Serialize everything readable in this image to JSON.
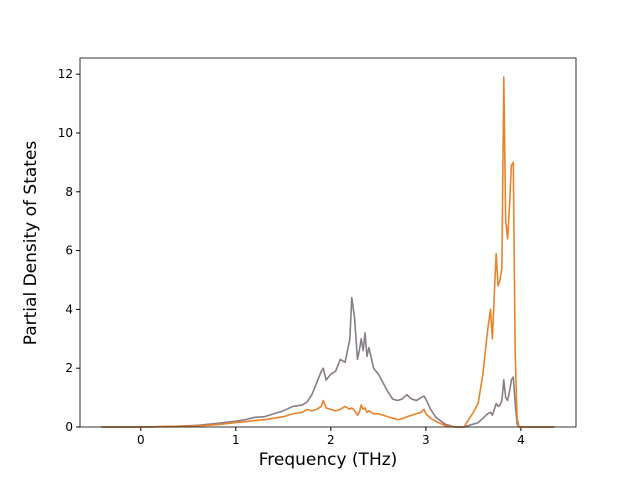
{
  "chart_data": {
    "type": "line",
    "xlabel": "Frequency (THz)",
    "ylabel": "Partial Density of States",
    "xlim": [
      -0.64,
      4.58
    ],
    "ylim": [
      0,
      12.55
    ],
    "xticks": [
      0,
      1,
      2,
      3,
      4
    ],
    "yticks": [
      0,
      2,
      4,
      6,
      8,
      10,
      12
    ],
    "grid": false,
    "x": [
      -0.42,
      0.0,
      0.2,
      0.4,
      0.6,
      0.8,
      1.0,
      1.1,
      1.2,
      1.3,
      1.4,
      1.5,
      1.6,
      1.7,
      1.75,
      1.8,
      1.85,
      1.9,
      1.92,
      1.95,
      2.0,
      2.05,
      2.1,
      2.15,
      2.2,
      2.22,
      2.25,
      2.28,
      2.3,
      2.32,
      2.34,
      2.36,
      2.38,
      2.4,
      2.45,
      2.5,
      2.55,
      2.6,
      2.65,
      2.7,
      2.75,
      2.8,
      2.85,
      2.9,
      2.95,
      2.98,
      3.0,
      3.05,
      3.1,
      3.2,
      3.3,
      3.4,
      3.45,
      3.5,
      3.55,
      3.6,
      3.65,
      3.68,
      3.7,
      3.72,
      3.74,
      3.76,
      3.78,
      3.8,
      3.82,
      3.84,
      3.86,
      3.88,
      3.9,
      3.92,
      3.94,
      3.96,
      3.98,
      4.35
    ],
    "series": [
      {
        "color": "#8a7c87",
        "values": [
          0,
          0,
          0.01,
          0.03,
          0.06,
          0.12,
          0.2,
          0.25,
          0.33,
          0.35,
          0.45,
          0.55,
          0.7,
          0.75,
          0.85,
          1.1,
          1.5,
          1.9,
          2.0,
          1.6,
          1.8,
          1.9,
          2.3,
          2.2,
          3.0,
          4.4,
          3.7,
          2.3,
          2.6,
          3.0,
          2.6,
          3.2,
          2.4,
          2.7,
          2.0,
          1.8,
          1.5,
          1.2,
          0.95,
          0.9,
          0.95,
          1.1,
          0.95,
          0.9,
          1.0,
          1.05,
          0.95,
          0.6,
          0.35,
          0.1,
          0,
          0,
          0.05,
          0.1,
          0.15,
          0.3,
          0.45,
          0.5,
          0.4,
          0.6,
          0.8,
          0.7,
          0.75,
          0.9,
          1.6,
          1.0,
          0.9,
          1.2,
          1.6,
          1.7,
          0.8,
          0.1,
          0,
          0
        ]
      },
      {
        "color": "#e8832a",
        "values": [
          0,
          0,
          0.01,
          0.02,
          0.04,
          0.08,
          0.15,
          0.18,
          0.22,
          0.25,
          0.3,
          0.35,
          0.45,
          0.5,
          0.6,
          0.55,
          0.6,
          0.7,
          0.9,
          0.65,
          0.6,
          0.55,
          0.6,
          0.7,
          0.6,
          0.65,
          0.55,
          0.4,
          0.5,
          0.75,
          0.6,
          0.65,
          0.5,
          0.55,
          0.45,
          0.45,
          0.4,
          0.35,
          0.3,
          0.25,
          0.28,
          0.35,
          0.4,
          0.45,
          0.5,
          0.6,
          0.45,
          0.3,
          0.2,
          0.05,
          0,
          0,
          0.25,
          0.5,
          0.8,
          1.8,
          3.3,
          4.0,
          3.0,
          4.5,
          5.9,
          4.8,
          5.0,
          5.4,
          11.9,
          7.0,
          6.4,
          7.5,
          8.9,
          9.0,
          2.5,
          0.3,
          0,
          0
        ]
      }
    ]
  }
}
